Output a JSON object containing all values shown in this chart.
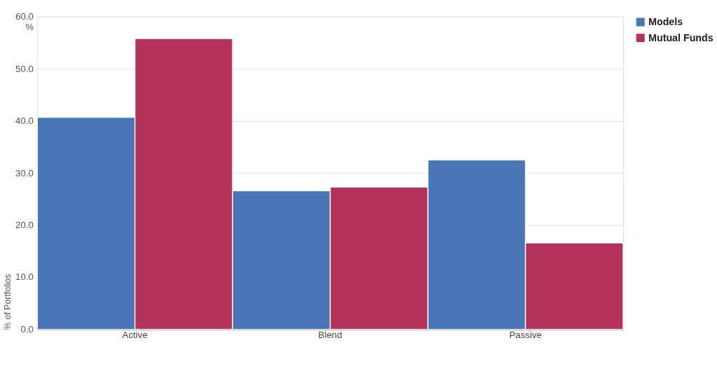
{
  "chart_data": {
    "type": "bar",
    "ylabel": "% of Portfolios",
    "categories": [
      "Active",
      "Blend",
      "Passive"
    ],
    "series": [
      {
        "name": "Models",
        "color": "#4a76b8",
        "values": [
          40.7,
          26.6,
          32.5
        ]
      },
      {
        "name": "Mutual Funds",
        "color": "#b5325a",
        "values": [
          55.8,
          27.3,
          16.6
        ]
      }
    ],
    "ylim": [
      0,
      60
    ],
    "yticks": [
      {
        "value": 0,
        "label": "0.0"
      },
      {
        "value": 10,
        "label": "10.0"
      },
      {
        "value": 20,
        "label": "20.0"
      },
      {
        "value": 30,
        "label": "30.0"
      },
      {
        "value": 40,
        "label": "40.0"
      },
      {
        "value": 50,
        "label": "50.0"
      },
      {
        "value": 60,
        "label": "60.0\n%"
      }
    ],
    "grid": "y",
    "legend": "top right"
  }
}
